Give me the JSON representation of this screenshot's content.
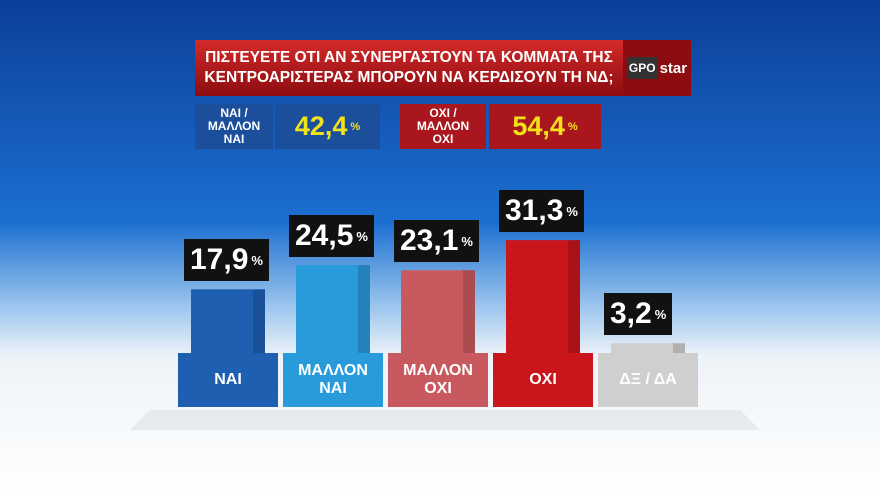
{
  "chart_data": {
    "type": "bar",
    "title": [
      "ΠΙΣΤΕΥΕΤΕ ΟΤΙ ΑΝ ΣΥΝΕΡΓΑΣΤΟΥΝ ΤΑ ΚΟΜΜΑΤΑ ΤΗΣ",
      "ΚΕΝΤΡΟΑΡΙΣΤΕΡΑΣ ΜΠΟΡΟΥΝ ΝΑ ΚΕΡΔΙΣΟΥΝ ΤΗ ΝΔ;"
    ],
    "logo": [
      "GPO",
      "star"
    ],
    "percent_sign": "%",
    "summary": [
      {
        "label": "ΝΑΙ / ΜΑΛΛΟΝ ΝΑΙ",
        "value_label": "42,4",
        "color": "#1b4f9c"
      },
      {
        "label": "ΟΧΙ / ΜΑΛΛΟΝ ΟΧΙ",
        "value_label": "54,4",
        "color": "#a9161d"
      }
    ],
    "categories": [
      "ΝΑΙ",
      "ΜΑΛΛΟΝ ΝΑΙ",
      "ΜΑΛΛΟΝ ΟΧΙ",
      "ΟΧΙ",
      "ΔΞ / ΔΑ"
    ],
    "values": [
      17.9,
      24.5,
      23.1,
      31.3,
      3.2
    ],
    "value_labels": [
      "17,9",
      "24,5",
      "23,1",
      "31,3",
      "3,2"
    ],
    "colors": [
      "#1f5fb2",
      "#2a9bda",
      "#c85a5f",
      "#c8161c",
      "#cfcfcf"
    ]
  }
}
